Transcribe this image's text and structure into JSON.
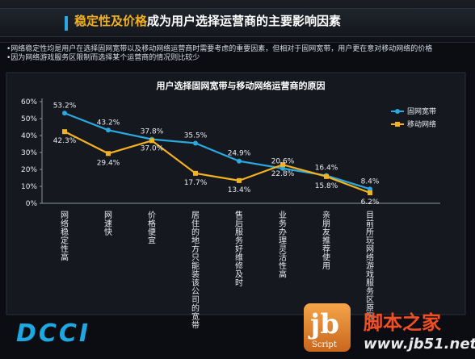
{
  "header": {
    "title_highlight": "稳定性及价格",
    "title_rest": "成为用户选择运营商的主要影响因素"
  },
  "bullets": [
    "•网络稳定性均是用户在选择固网宽带以及移动网络运营商时需要考虑的重要因素，但相对于固网宽带，用户更在意对移动网络的价格",
    "•因为网络游戏服务区限制而选择某个运营商的情况则比较少"
  ],
  "logo": {
    "text": "DCCI"
  },
  "watermark": {
    "logo_text": "jb",
    "script": "Script",
    "site_cn": "脚本之家",
    "url": "www.jb51.net"
  },
  "colors": {
    "series1": "#29a9e0",
    "series2": "#f4b21e",
    "grid": "#4a4f58",
    "background": "#0b0d12"
  },
  "chart_data": {
    "type": "line",
    "title": "用户选择固网宽带与移动网络运营商的原因",
    "ylim": [
      0,
      60
    ],
    "yticks": [
      "0%",
      "10%",
      "20%",
      "30%",
      "40%",
      "50%",
      "60%"
    ],
    "categories": [
      "网络稳定性高",
      "网速快",
      "价格便宜",
      "居住的地方只能装该公司的宽带",
      "售后服务好、维修及时",
      "业务办理灵活性高",
      "亲朋友推荐使用",
      "目前所玩网络游戏服务区原因"
    ],
    "series": [
      {
        "name": "固网宽带",
        "color": "#29a9e0",
        "values": [
          53.2,
          43.2,
          37.8,
          35.5,
          24.9,
          20.6,
          16.4,
          8.4
        ],
        "labels": [
          "53.2%",
          "43.2%",
          "37.8%",
          "35.5%",
          "24.9%",
          "20.6%",
          "16.4%",
          "8.4%"
        ]
      },
      {
        "name": "移动网络",
        "color": "#f4b21e",
        "values": [
          42.3,
          29.4,
          37.0,
          17.7,
          13.4,
          22.8,
          15.8,
          6.2
        ],
        "labels": [
          "42.3%",
          "29.4%",
          "37.0%",
          "17.7%",
          "13.4%",
          "22.8%",
          "15.8%",
          "6.2%"
        ]
      }
    ],
    "legend_position": "top-right",
    "grid": false
  }
}
